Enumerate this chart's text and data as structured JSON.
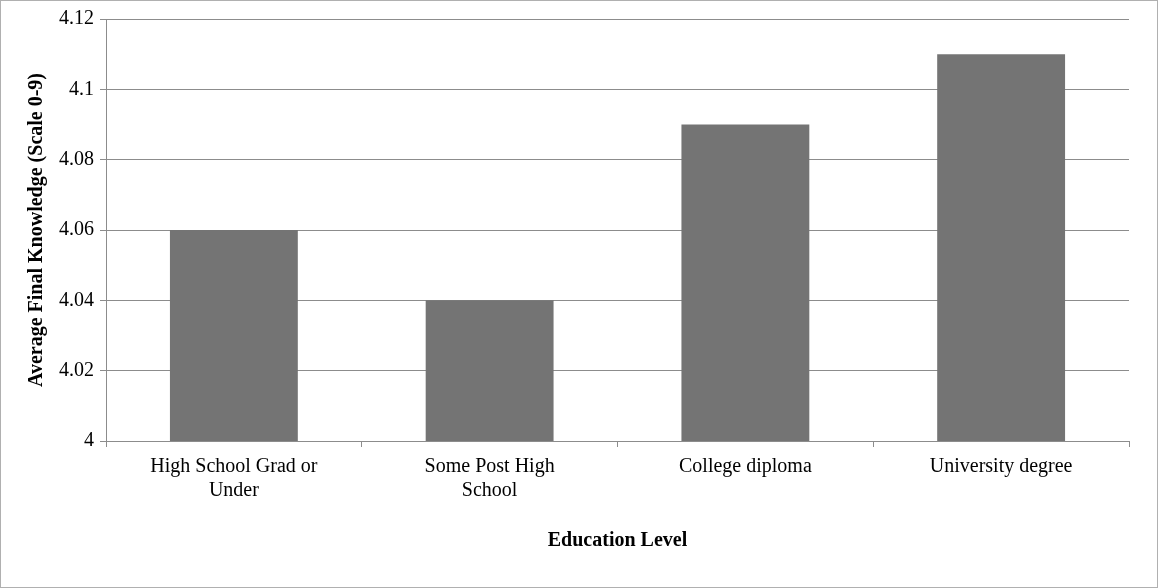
{
  "chart_data": {
    "type": "bar",
    "categories": [
      "High School Grad or Under",
      "Some Post High School",
      "College diploma",
      "University degree"
    ],
    "values": [
      4.06,
      4.04,
      4.09,
      4.11
    ],
    "color": "#747474",
    "xlabel": "Education Level",
    "ylabel": "Average Final Knowledge (Scale 0-9)",
    "ylim": [
      4,
      4.12
    ],
    "yticks": [
      4,
      4.02,
      4.04,
      4.06,
      4.08,
      4.1,
      4.12
    ],
    "grid": "y",
    "legend": false
  }
}
